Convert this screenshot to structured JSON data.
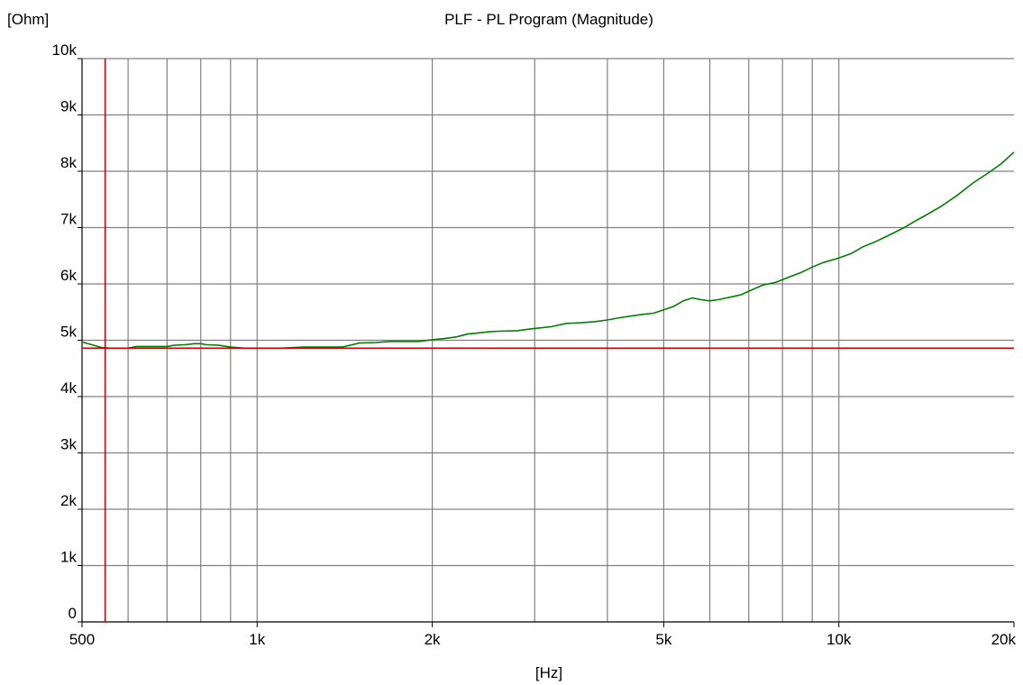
{
  "chart_data": {
    "type": "line",
    "title": "PLF - PL Program (Magnitude)",
    "xlabel": "[Hz]",
    "ylabel": "[Ohm]",
    "x_scale": "log",
    "xlim": [
      500,
      20000
    ],
    "ylim": [
      0,
      10000
    ],
    "x_ticks": [
      {
        "value": 500,
        "label": "500"
      },
      {
        "value": 1000,
        "label": "1k"
      },
      {
        "value": 2000,
        "label": "2k"
      },
      {
        "value": 5000,
        "label": "5k"
      },
      {
        "value": 10000,
        "label": "10k"
      },
      {
        "value": 20000,
        "label": "20k"
      }
    ],
    "y_ticks": [
      {
        "value": 0,
        "label": "0"
      },
      {
        "value": 1000,
        "label": "1k"
      },
      {
        "value": 2000,
        "label": "2k"
      },
      {
        "value": 3000,
        "label": "3k"
      },
      {
        "value": 4000,
        "label": "4k"
      },
      {
        "value": 5000,
        "label": "5k"
      },
      {
        "value": 6000,
        "label": "6k"
      },
      {
        "value": 7000,
        "label": "7k"
      },
      {
        "value": 8000,
        "label": "8k"
      },
      {
        "value": 9000,
        "label": "9k"
      },
      {
        "value": 10000,
        "label": "10k"
      }
    ],
    "x_gridlines": [
      600,
      700,
      800,
      900,
      1000,
      2000,
      3000,
      4000,
      5000,
      6000,
      7000,
      8000,
      9000,
      10000
    ],
    "grid": true,
    "series": [
      {
        "color": "#008000",
        "x": [
          500,
          520,
          540,
          560,
          580,
          600,
          620,
          650,
          700,
          720,
          750,
          780,
          800,
          820,
          860,
          900,
          950,
          1000,
          1100,
          1200,
          1300,
          1400,
          1500,
          1600,
          1700,
          1800,
          1900,
          2000,
          2100,
          2200,
          2300,
          2400,
          2500,
          2600,
          2800,
          2900,
          3000,
          3200,
          3400,
          3600,
          3800,
          4000,
          4200,
          4400,
          4600,
          4800,
          5000,
          5200,
          5400,
          5600,
          5800,
          6000,
          6200,
          6400,
          6600,
          6800,
          7000,
          7400,
          7800,
          8200,
          8600,
          9000,
          9400,
          10000,
          10500,
          11000,
          11500,
          12000,
          12500,
          13000,
          13500,
          14000,
          15000,
          16000,
          17000,
          18000,
          19000,
          20000
        ],
        "y": [
          4970,
          4920,
          4870,
          4860,
          4860,
          4860,
          4890,
          4890,
          4890,
          4910,
          4920,
          4940,
          4940,
          4920,
          4910,
          4880,
          4860,
          4860,
          4860,
          4880,
          4880,
          4880,
          4950,
          4960,
          4980,
          4980,
          4980,
          5010,
          5030,
          5060,
          5110,
          5130,
          5150,
          5160,
          5170,
          5190,
          5210,
          5240,
          5300,
          5310,
          5330,
          5360,
          5400,
          5430,
          5460,
          5480,
          5540,
          5600,
          5700,
          5750,
          5720,
          5700,
          5720,
          5750,
          5780,
          5810,
          5870,
          5980,
          6030,
          6120,
          6200,
          6300,
          6380,
          6460,
          6540,
          6660,
          6740,
          6830,
          6920,
          7010,
          7110,
          7200,
          7380,
          7580,
          7790,
          7960,
          8130,
          8340
        ]
      }
    ],
    "markers": [
      {
        "orientation": "vertical",
        "x": 548,
        "color": "#cc0000"
      },
      {
        "orientation": "horizontal",
        "y": 4860,
        "color": "#cc0000"
      }
    ]
  }
}
